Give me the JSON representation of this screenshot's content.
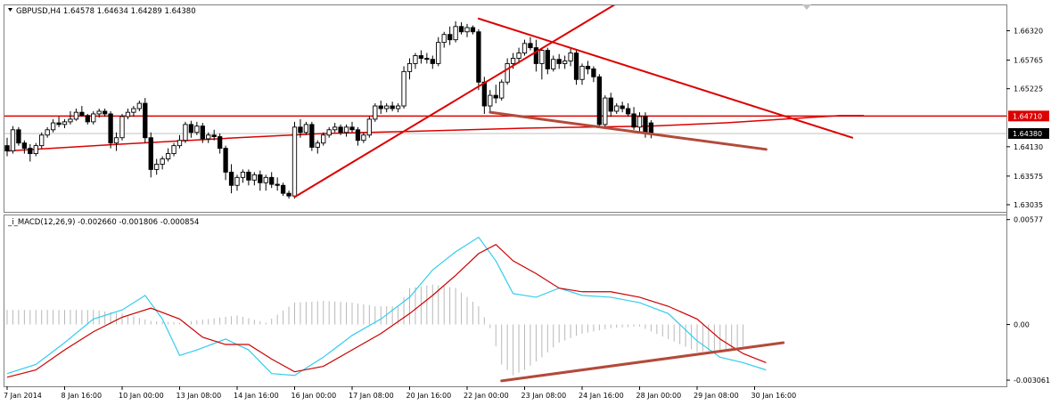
{
  "window": {
    "symbol_line": "GBPUSD,H4  1.64578  1.64634  1.64289  1.64380",
    "macd_line": "_i_MACD(12,26,9)  -0.002660  -0.001806  -0.000854"
  },
  "chart_data": [
    {
      "type": "candlestick",
      "symbol": "GBPUSD",
      "timeframe": "H4",
      "ohlc_header": {
        "open": 1.64578,
        "high": 1.64634,
        "low": 1.64289,
        "close": 1.6438
      },
      "y_ticks": [
        "1.66320",
        "1.65765",
        "1.65225",
        "1.64130",
        "1.63575",
        "1.63035"
      ],
      "y_range": [
        1.629,
        1.668
      ],
      "price_labels": {
        "resistance_line": "1.64710",
        "current": "1.64380"
      },
      "horizontal_line": 1.6471,
      "current_price": 1.6438,
      "candles_ohlc": [
        [
          1.6415,
          1.643,
          1.6395,
          1.6405
        ],
        [
          1.6405,
          1.6452,
          1.64,
          1.6445
        ],
        [
          1.6445,
          1.645,
          1.6415,
          1.642
        ],
        [
          1.642,
          1.6425,
          1.64,
          1.641
        ],
        [
          1.641,
          1.6418,
          1.6385,
          1.64
        ],
        [
          1.64,
          1.642,
          1.6395,
          1.6415
        ],
        [
          1.6415,
          1.644,
          1.641,
          1.6435
        ],
        [
          1.6435,
          1.645,
          1.643,
          1.6445
        ],
        [
          1.6445,
          1.6465,
          1.644,
          1.6458
        ],
        [
          1.6458,
          1.647,
          1.645,
          1.6455
        ],
        [
          1.6455,
          1.6465,
          1.6448,
          1.646
        ],
        [
          1.646,
          1.648,
          1.6455,
          1.6465
        ],
        [
          1.6465,
          1.6485,
          1.6462,
          1.6478
        ],
        [
          1.6478,
          1.649,
          1.647,
          1.6472
        ],
        [
          1.6472,
          1.6475,
          1.6455,
          1.646
        ],
        [
          1.646,
          1.648,
          1.6455,
          1.6475
        ],
        [
          1.6475,
          1.6485,
          1.6468,
          1.648
        ],
        [
          1.648,
          1.6485,
          1.647,
          1.6475
        ],
        [
          1.6475,
          1.648,
          1.641,
          1.642
        ],
        [
          1.642,
          1.644,
          1.6405,
          1.643
        ],
        [
          1.643,
          1.6475,
          1.6425,
          1.647
        ],
        [
          1.647,
          1.6485,
          1.6465,
          1.6478
        ],
        [
          1.6478,
          1.649,
          1.647,
          1.6485
        ],
        [
          1.6485,
          1.65,
          1.648,
          1.6495
        ],
        [
          1.6495,
          1.6505,
          1.642,
          1.643
        ],
        [
          1.643,
          1.644,
          1.6355,
          1.637
        ],
        [
          1.637,
          1.639,
          1.636,
          1.638
        ],
        [
          1.638,
          1.6395,
          1.637,
          1.639
        ],
        [
          1.639,
          1.641,
          1.6385,
          1.64
        ],
        [
          1.64,
          1.642,
          1.6395,
          1.6415
        ],
        [
          1.6415,
          1.6435,
          1.641,
          1.6425
        ],
        [
          1.6425,
          1.646,
          1.642,
          1.6455
        ],
        [
          1.6455,
          1.6462,
          1.643,
          1.644
        ],
        [
          1.644,
          1.646,
          1.6435,
          1.6452
        ],
        [
          1.6452,
          1.6458,
          1.642,
          1.6428
        ],
        [
          1.6428,
          1.644,
          1.642,
          1.6435
        ],
        [
          1.6435,
          1.6445,
          1.6425,
          1.6432
        ],
        [
          1.6432,
          1.6438,
          1.64,
          1.641
        ],
        [
          1.641,
          1.6415,
          1.635,
          1.6365
        ],
        [
          1.6365,
          1.638,
          1.6325,
          1.634
        ],
        [
          1.634,
          1.636,
          1.633,
          1.6355
        ],
        [
          1.6355,
          1.637,
          1.6345,
          1.6365
        ],
        [
          1.6365,
          1.637,
          1.634,
          1.635
        ],
        [
          1.635,
          1.6365,
          1.634,
          1.636
        ],
        [
          1.636,
          1.6368,
          1.633,
          1.6345
        ],
        [
          1.6345,
          1.636,
          1.633,
          1.6355
        ],
        [
          1.6355,
          1.6365,
          1.6335,
          1.6342
        ],
        [
          1.6342,
          1.6355,
          1.633,
          1.634
        ],
        [
          1.634,
          1.6345,
          1.632,
          1.6325
        ],
        [
          1.6325,
          1.633,
          1.6315,
          1.632
        ],
        [
          1.632,
          1.646,
          1.6315,
          1.645
        ],
        [
          1.645,
          1.6465,
          1.643,
          1.644
        ],
        [
          1.644,
          1.646,
          1.6435,
          1.6455
        ],
        [
          1.6455,
          1.646,
          1.6405,
          1.6412
        ],
        [
          1.6412,
          1.6425,
          1.64,
          1.642
        ],
        [
          1.642,
          1.644,
          1.6415,
          1.6435
        ],
        [
          1.6435,
          1.645,
          1.643,
          1.6445
        ],
        [
          1.6445,
          1.6458,
          1.644,
          1.645
        ],
        [
          1.645,
          1.6455,
          1.6435,
          1.644
        ],
        [
          1.644,
          1.6455,
          1.6432,
          1.645
        ],
        [
          1.645,
          1.646,
          1.644,
          1.6445
        ],
        [
          1.6445,
          1.645,
          1.6415,
          1.6425
        ],
        [
          1.6425,
          1.644,
          1.642,
          1.6435
        ],
        [
          1.6435,
          1.647,
          1.643,
          1.6465
        ],
        [
          1.6465,
          1.6495,
          1.646,
          1.649
        ],
        [
          1.649,
          1.65,
          1.6475,
          1.6485
        ],
        [
          1.6485,
          1.6495,
          1.6478,
          1.649
        ],
        [
          1.649,
          1.6498,
          1.648,
          1.6485
        ],
        [
          1.6485,
          1.6495,
          1.6478,
          1.649
        ],
        [
          1.649,
          1.6565,
          1.6485,
          1.6555
        ],
        [
          1.6555,
          1.658,
          1.654,
          1.657
        ],
        [
          1.657,
          1.659,
          1.656,
          1.6585
        ],
        [
          1.6585,
          1.6595,
          1.657,
          1.658
        ],
        [
          1.658,
          1.659,
          1.657,
          1.6578
        ],
        [
          1.6578,
          1.6585,
          1.656,
          1.657
        ],
        [
          1.657,
          1.662,
          1.6565,
          1.661
        ],
        [
          1.661,
          1.663,
          1.66,
          1.6625
        ],
        [
          1.6625,
          1.664,
          1.6605,
          1.6615
        ],
        [
          1.6615,
          1.665,
          1.661,
          1.664
        ],
        [
          1.664,
          1.6648,
          1.6625,
          1.663
        ],
        [
          1.663,
          1.6645,
          1.662,
          1.6638
        ],
        [
          1.6638,
          1.6642,
          1.6625,
          1.663
        ],
        [
          1.663,
          1.6635,
          1.652,
          1.6535
        ],
        [
          1.6535,
          1.6545,
          1.6475,
          1.649
        ],
        [
          1.649,
          1.652,
          1.648,
          1.651
        ],
        [
          1.651,
          1.653,
          1.6495,
          1.6505
        ],
        [
          1.6505,
          1.654,
          1.65,
          1.6535
        ],
        [
          1.6535,
          1.658,
          1.653,
          1.657
        ],
        [
          1.657,
          1.659,
          1.656,
          1.658
        ],
        [
          1.658,
          1.66,
          1.657,
          1.659
        ],
        [
          1.659,
          1.6615,
          1.6585,
          1.6608
        ],
        [
          1.6608,
          1.662,
          1.6595,
          1.66
        ],
        [
          1.66,
          1.6615,
          1.6555,
          1.657
        ],
        [
          1.657,
          1.66,
          1.654,
          1.6595
        ],
        [
          1.6595,
          1.66,
          1.655,
          1.656
        ],
        [
          1.656,
          1.6585,
          1.6555,
          1.6578
        ],
        [
          1.6578,
          1.6588,
          1.656,
          1.657
        ],
        [
          1.657,
          1.6585,
          1.656,
          1.6575
        ],
        [
          1.6575,
          1.6598,
          1.6565,
          1.659
        ],
        [
          1.659,
          1.6595,
          1.653,
          1.654
        ],
        [
          1.654,
          1.657,
          1.653,
          1.6565
        ],
        [
          1.6565,
          1.6575,
          1.655,
          1.656
        ],
        [
          1.656,
          1.6565,
          1.6535,
          1.6545
        ],
        [
          1.6545,
          1.655,
          1.645,
          1.6455
        ],
        [
          1.6455,
          1.651,
          1.645,
          1.6505
        ],
        [
          1.6505,
          1.6515,
          1.647,
          1.648
        ],
        [
          1.648,
          1.6495,
          1.6475,
          1.649
        ],
        [
          1.649,
          1.6498,
          1.6478,
          1.6485
        ],
        [
          1.6485,
          1.6495,
          1.647,
          1.6475
        ],
        [
          1.6475,
          1.6488,
          1.6445,
          1.645
        ],
        [
          1.645,
          1.6478,
          1.644,
          1.647
        ],
        [
          1.647,
          1.6478,
          1.643,
          1.644
        ],
        [
          1.6458,
          1.6463,
          1.6429,
          1.6438
        ]
      ],
      "ma_line": [
        [
          0,
          1.6405
        ],
        [
          20,
          1.6418
        ],
        [
          40,
          1.643
        ],
        [
          55,
          1.6438
        ],
        [
          70,
          1.6442
        ],
        [
          90,
          1.6448
        ],
        [
          100,
          1.645
        ],
        [
          112,
          1.6452
        ],
        [
          125,
          1.6458
        ],
        [
          135,
          1.6465
        ],
        [
          145,
          1.6472
        ],
        [
          149,
          1.6472
        ]
      ],
      "trendlines": [
        {
          "color": "#dd0000",
          "from": [
            50,
            1.6318
          ],
          "to": [
            107,
            1.669
          ]
        },
        {
          "color": "#dd0000",
          "from": [
            82,
            1.6655
          ],
          "to": [
            147,
            1.643
          ]
        },
        {
          "color": "#b34a3a",
          "from": [
            84,
            1.6478
          ],
          "to": [
            132,
            1.6408
          ]
        }
      ]
    },
    {
      "type": "line",
      "name": "_i_MACD(12,26,9)",
      "header_values": [
        -0.00266,
        -0.001806,
        -0.000854
      ],
      "y_ticks": [
        "0.00577",
        "0.00",
        "-0.003061"
      ],
      "y_range": [
        -0.0034,
        0.006
      ],
      "histogram": [
        [
          0,
          0.0008
        ],
        [
          5,
          0.0008
        ],
        [
          10,
          0.0008
        ],
        [
          15,
          0.0008
        ],
        [
          20,
          0.0006
        ],
        [
          25,
          0.0002
        ],
        [
          30,
          0.0001
        ],
        [
          35,
          0.0003
        ],
        [
          40,
          0.0005
        ],
        [
          45,
          0.0001
        ],
        [
          50,
          0.0012
        ],
        [
          55,
          0.0013
        ],
        [
          60,
          0.0012
        ],
        [
          64,
          0.001
        ],
        [
          68,
          0.001
        ],
        [
          70,
          0.002
        ],
        [
          74,
          0.0022
        ],
        [
          78,
          0.002
        ],
        [
          82,
          0.001
        ],
        [
          84,
          -0.0002
        ],
        [
          86,
          -0.0022
        ],
        [
          88,
          -0.0028
        ],
        [
          90,
          -0.0025
        ],
        [
          93,
          -0.0018
        ],
        [
          96,
          -0.001
        ],
        [
          100,
          -0.0005
        ],
        [
          105,
          -0.0002
        ],
        [
          110,
          -0.0001
        ],
        [
          115,
          -0.0008
        ],
        [
          120,
          -0.0015
        ],
        [
          124,
          -0.0014
        ],
        [
          128,
          -0.0012
        ]
      ],
      "series": [
        {
          "color": "#33ccee",
          "points": [
            [
              0,
              -0.0027
            ],
            [
              5,
              -0.0022
            ],
            [
              10,
              -0.001
            ],
            [
              15,
              0.0003
            ],
            [
              20,
              0.0008
            ],
            [
              24,
              0.0016
            ],
            [
              27,
              0.0003
            ],
            [
              30,
              -0.0017
            ],
            [
              33,
              -0.0014
            ],
            [
              38,
              -0.0008
            ],
            [
              42,
              -0.0014
            ],
            [
              46,
              -0.0027
            ],
            [
              50,
              -0.0028
            ],
            [
              55,
              -0.0018
            ],
            [
              60,
              -0.0006
            ],
            [
              65,
              0.0003
            ],
            [
              70,
              0.0015
            ],
            [
              74,
              0.003
            ],
            [
              78,
              0.004
            ],
            [
              82,
              0.0048
            ],
            [
              85,
              0.0035
            ],
            [
              88,
              0.0017
            ],
            [
              92,
              0.0015
            ],
            [
              96,
              0.002
            ],
            [
              100,
              0.0016
            ],
            [
              105,
              0.0015
            ],
            [
              110,
              0.0012
            ],
            [
              115,
              0.0006
            ],
            [
              120,
              -0.0009
            ],
            [
              124,
              -0.0018
            ],
            [
              128,
              -0.0021
            ],
            [
              132,
              -0.0025
            ]
          ]
        },
        {
          "color": "#cc0000",
          "points": [
            [
              0,
              -0.0029
            ],
            [
              5,
              -0.0025
            ],
            [
              10,
              -0.0014
            ],
            [
              15,
              -0.0004
            ],
            [
              20,
              0.0004
            ],
            [
              25,
              0.0009
            ],
            [
              30,
              0.0003
            ],
            [
              34,
              -0.0007
            ],
            [
              38,
              -0.0011
            ],
            [
              42,
              -0.0011
            ],
            [
              46,
              -0.0019
            ],
            [
              50,
              -0.0026
            ],
            [
              55,
              -0.0023
            ],
            [
              60,
              -0.0014
            ],
            [
              65,
              -0.0005
            ],
            [
              70,
              0.0006
            ],
            [
              74,
              0.0016
            ],
            [
              78,
              0.0027
            ],
            [
              82,
              0.0039
            ],
            [
              85,
              0.0044
            ],
            [
              88,
              0.0035
            ],
            [
              92,
              0.0028
            ],
            [
              96,
              0.002
            ],
            [
              100,
              0.0018
            ],
            [
              105,
              0.0018
            ],
            [
              110,
              0.0015
            ],
            [
              115,
              0.001
            ],
            [
              120,
              0.0003
            ],
            [
              124,
              -0.0008
            ],
            [
              128,
              -0.0016
            ],
            [
              132,
              -0.0021
            ]
          ]
        }
      ],
      "trendline": {
        "color": "#b34a3a",
        "from": [
          86,
          -0.0031
        ],
        "to": [
          135,
          -0.001
        ]
      }
    }
  ],
  "x_labels": [
    "7 Jan 2014",
    "8 Jan 16:00",
    "10 Jan 00:00",
    "13 Jan 08:00",
    "14 Jan 16:00",
    "16 Jan 00:00",
    "17 Jan 08:00",
    "20 Jan 16:00",
    "22 Jan 00:00",
    "23 Jan 08:00",
    "24 Jan 16:00",
    "28 Jan 00:00",
    "29 Jan 08:00",
    "30 Jan 16:00"
  ],
  "x_label_candle_index": [
    0,
    10,
    20,
    30,
    40,
    50,
    60,
    70,
    80,
    90,
    100,
    110,
    120,
    130
  ]
}
